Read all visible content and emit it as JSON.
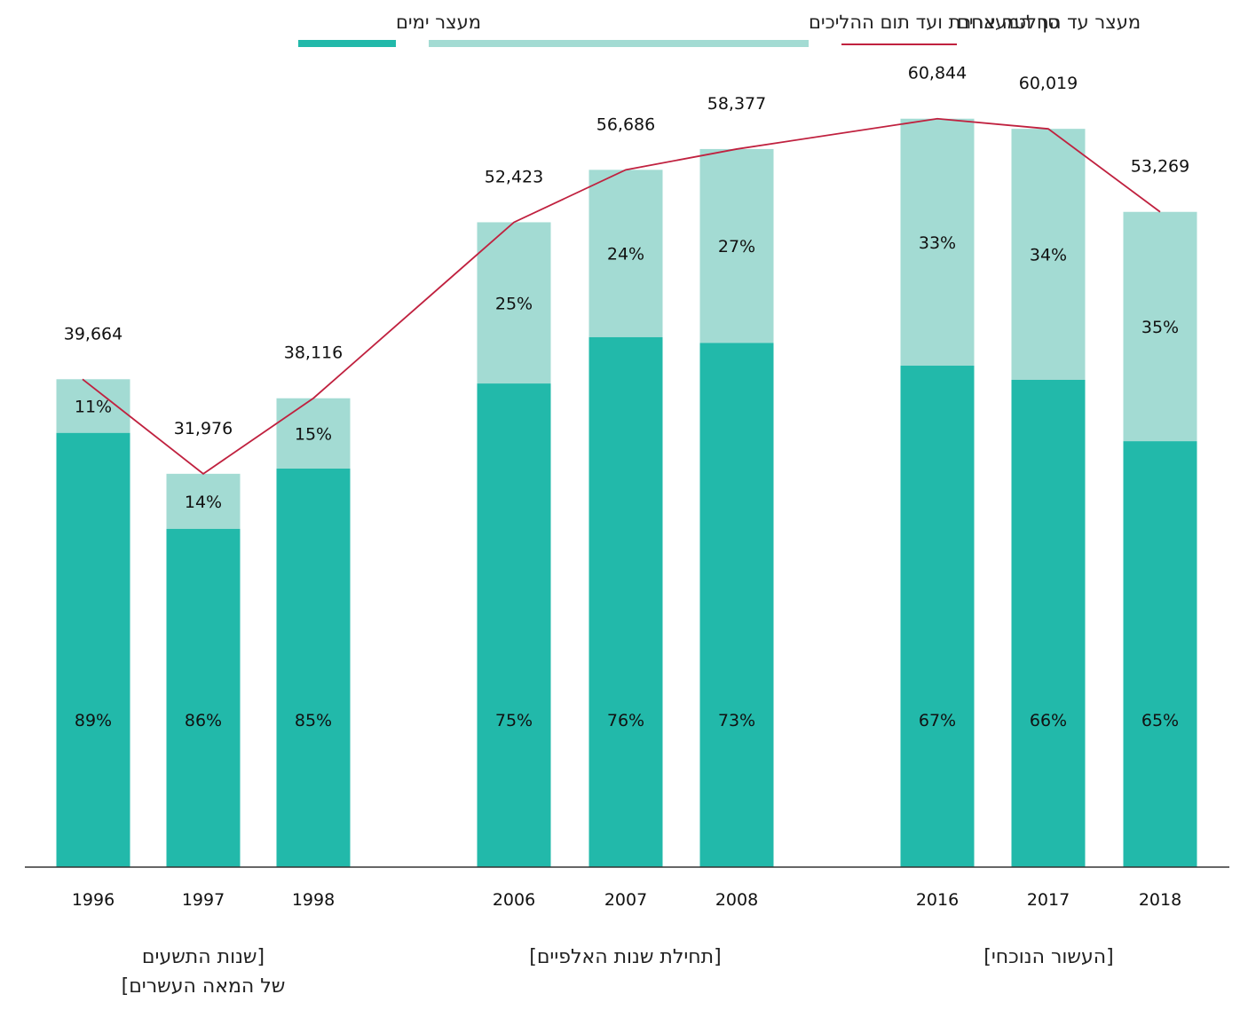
{
  "chart_data": {
    "type": "bar",
    "stacked": true,
    "categories": [
      "1996",
      "1997",
      "1998",
      "2006",
      "2007",
      "2008",
      "2016",
      "2017",
      "2018"
    ],
    "series": [
      {
        "name": "מעצר ימים",
        "color": "#22b9aa",
        "percent_labels": [
          "89%",
          "86%",
          "85%",
          "75%",
          "76%",
          "73%",
          "67%",
          "66%",
          "65%"
        ],
        "values": [
          35301,
          27499,
          32399,
          39317,
          43081,
          42615,
          40765,
          39613,
          34625
        ]
      },
      {
        "name": "מעצר עד החלטה אחרת ועד תום ההליכים",
        "color": "#a3dbd3",
        "percent_labels": [
          "11%",
          "14%",
          "15%",
          "25%",
          "24%",
          "27%",
          "33%",
          "34%",
          "35%"
        ],
        "values": [
          4363,
          4477,
          5717,
          13106,
          13605,
          15762,
          20079,
          20406,
          18644
        ]
      }
    ],
    "line": {
      "name": "סך המעצרים",
      "color": "#c0213f",
      "values": [
        39664,
        31976,
        38116,
        52423,
        56686,
        58377,
        60844,
        60019,
        53269
      ],
      "labels": [
        "39,664",
        "31,976",
        "38,116",
        "52,423",
        "56,686",
        "58,377",
        "60,844",
        "60,019",
        "53,269"
      ]
    },
    "groups": [
      {
        "label_lines": [
          "[שנות התשעים",
          "של המאה העשרים]"
        ],
        "categories": [
          "1996",
          "1997",
          "1998"
        ]
      },
      {
        "label_lines": [
          "[תחילת שנות האלפיים]"
        ],
        "categories": [
          "2006",
          "2007",
          "2008"
        ]
      },
      {
        "label_lines": [
          "[העשור הנוכחי]"
        ],
        "categories": [
          "2016",
          "2017",
          "2018"
        ]
      }
    ],
    "ylim": [
      0,
      64000
    ],
    "grid": false,
    "legend_position": "top",
    "colors": {
      "axis": "#333333"
    }
  }
}
